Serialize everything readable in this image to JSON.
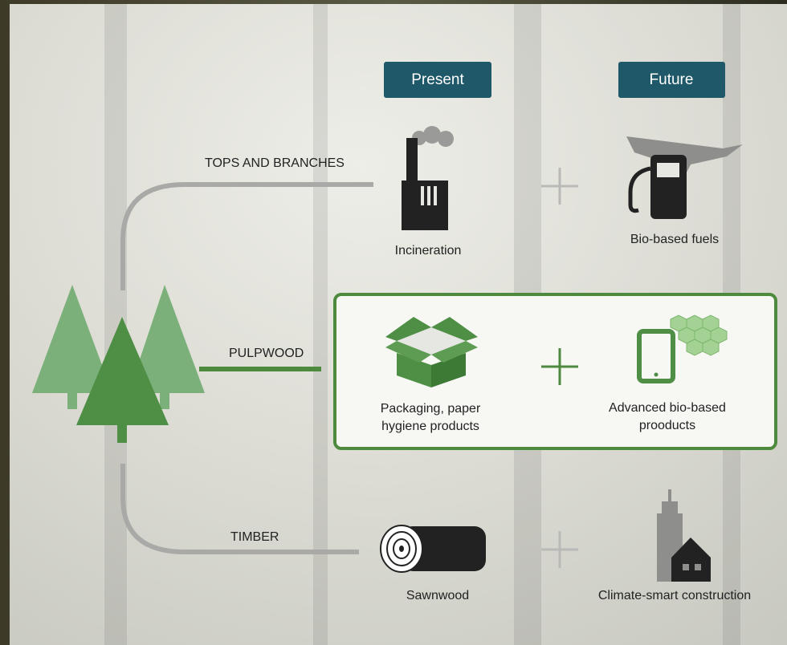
{
  "headers": {
    "present": "Present",
    "future": "Future"
  },
  "rows": [
    {
      "branch": "TOPS AND BRANCHES",
      "present": [
        "Incineration"
      ],
      "future": [
        "Bio-based fuels"
      ]
    },
    {
      "branch": "PULPWOOD",
      "present": [
        "Packaging, paper",
        "hygiene products"
      ],
      "future": [
        "Advanced bio-based",
        "prooducts"
      ]
    },
    {
      "branch": "TIMBER",
      "present": [
        "Sawnwood"
      ],
      "future": [
        "Climate-smart construction"
      ]
    }
  ]
}
